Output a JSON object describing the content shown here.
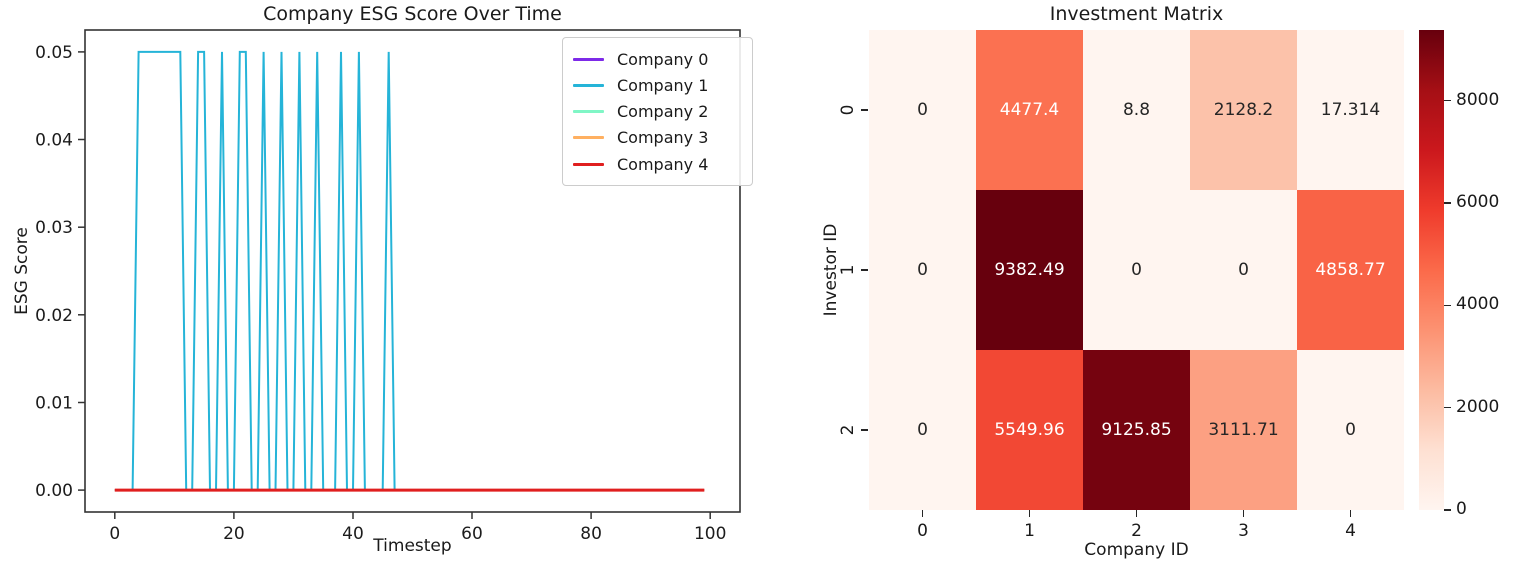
{
  "figure": {
    "background": "#ffffff"
  },
  "chart_data": [
    {
      "type": "line",
      "title": "Company ESG Score Over Time",
      "xlabel": "Timestep",
      "ylabel": "ESG Score",
      "xlim": [
        -5,
        105
      ],
      "ylim": [
        -0.0025,
        0.0525
      ],
      "x_ticks": [
        0,
        20,
        40,
        60,
        80,
        100
      ],
      "y_ticks": [
        0,
        0.01,
        0.02,
        0.03,
        0.04,
        0.05
      ],
      "grid": false,
      "legend_position": "upper right",
      "timesteps": 100,
      "series": [
        {
          "name": "Company 0",
          "color": "#7d2ae8",
          "constant_value": 0,
          "linewidth": 2
        },
        {
          "name": "Company 1",
          "color": "#25b4d8",
          "base_value": 0,
          "spike_value": 0.05,
          "spike_timesteps": [
            4,
            5,
            6,
            7,
            8,
            9,
            10,
            11,
            14,
            15,
            18,
            21,
            22,
            25,
            28,
            31,
            34,
            38,
            41,
            46
          ],
          "linewidth": 2
        },
        {
          "name": "Company 2",
          "color": "#80f6c6",
          "constant_value": 0,
          "linewidth": 2
        },
        {
          "name": "Company 3",
          "color": "#ffb061",
          "constant_value": 0,
          "linewidth": 2
        },
        {
          "name": "Company 4",
          "color": "#e01f1f",
          "constant_value": 0,
          "linewidth": 3
        }
      ]
    },
    {
      "type": "heatmap",
      "title": "Investment Matrix",
      "xlabel": "Company ID",
      "ylabel": "Investor ID",
      "x_ticks": [
        "0",
        "1",
        "2",
        "3",
        "4"
      ],
      "y_ticks": [
        "0",
        "1",
        "2"
      ],
      "values": [
        [
          0,
          4477.4,
          8.8,
          2128.2,
          17.314
        ],
        [
          0,
          9382.49,
          0,
          0,
          4858.77
        ],
        [
          0,
          5549.96,
          9125.85,
          3111.71,
          0
        ]
      ],
      "cell_labels": [
        [
          "0",
          "4477.4",
          "8.8",
          "2128.2",
          "17.314"
        ],
        [
          "0",
          "9382.49",
          "0",
          "0",
          "4858.77"
        ],
        [
          "0",
          "5549.96",
          "9125.85",
          "3111.71",
          "0"
        ]
      ],
      "vmin": 0,
      "vmax": 9382.49,
      "colormap": "Reds",
      "colormap_anchors": [
        "#fff5f0",
        "#fee0d2",
        "#fcbba1",
        "#fc9272",
        "#fb6a4a",
        "#ef3b2c",
        "#cb181d",
        "#a50f15",
        "#67000d"
      ],
      "colorbar_ticks": [
        0,
        2000,
        4000,
        6000,
        8000
      ],
      "annotation_text_dark": "#262626",
      "annotation_text_light": "#ffffff"
    }
  ]
}
